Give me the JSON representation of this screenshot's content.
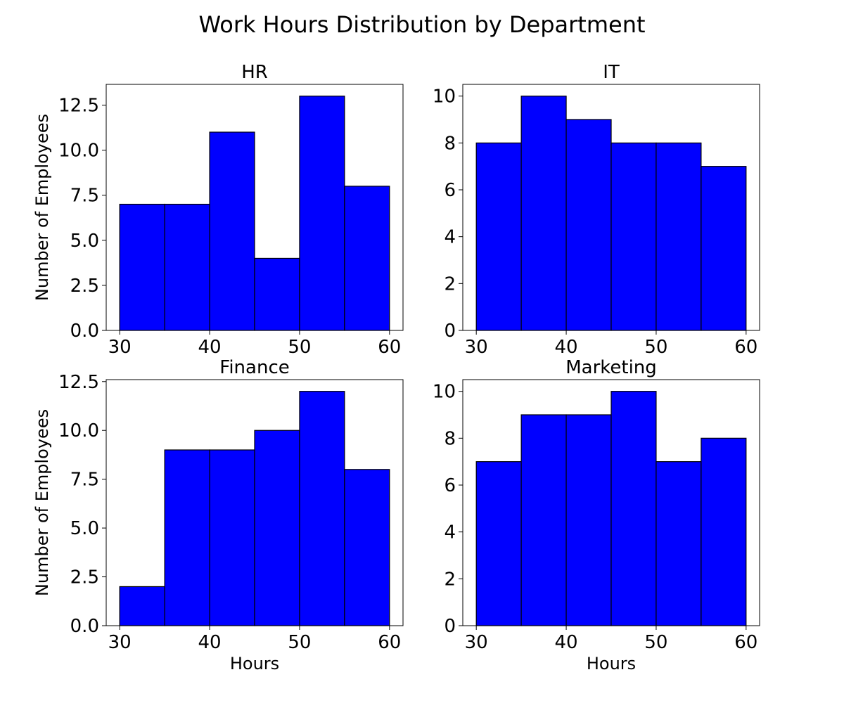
{
  "chart_data": {
    "title": "Work Hours Distribution by Department",
    "type": "bar",
    "colors": {
      "bar_fill": "#0000ff",
      "bar_edge": "#000000",
      "background": "#ffffff"
    },
    "panels": [
      {
        "title": "HR",
        "ylabel": "Number of Employees",
        "xlabel": "",
        "bins": [
          30,
          35,
          40,
          45,
          50,
          55,
          60
        ],
        "values": [
          7,
          7,
          11,
          4,
          13,
          8
        ],
        "xlim": [
          28.5,
          61.5
        ],
        "ylim": [
          0,
          13.65
        ],
        "xticks": [
          30,
          40,
          50,
          60
        ],
        "xtick_labels": [
          "30",
          "40",
          "50",
          "60"
        ],
        "yticks": [
          0,
          2.5,
          5,
          7.5,
          10,
          12.5
        ],
        "ytick_labels": [
          "0.0",
          "2.5",
          "5.0",
          "7.5",
          "10.0",
          "12.5"
        ]
      },
      {
        "title": "IT",
        "ylabel": "",
        "xlabel": "",
        "bins": [
          30,
          35,
          40,
          45,
          50,
          55,
          60
        ],
        "values": [
          8,
          10,
          9,
          8,
          8,
          7
        ],
        "xlim": [
          28.5,
          61.5
        ],
        "ylim": [
          0,
          10.5
        ],
        "xticks": [
          30,
          40,
          50,
          60
        ],
        "xtick_labels": [
          "30",
          "40",
          "50",
          "60"
        ],
        "yticks": [
          0,
          2,
          4,
          6,
          8,
          10
        ],
        "ytick_labels": [
          "0",
          "2",
          "4",
          "6",
          "8",
          "10"
        ]
      },
      {
        "title": "Finance",
        "ylabel": "Number of Employees",
        "xlabel": "Hours",
        "bins": [
          30,
          35,
          40,
          45,
          50,
          55,
          60
        ],
        "values": [
          2,
          9,
          9,
          10,
          12,
          8
        ],
        "xlim": [
          28.5,
          61.5
        ],
        "ylim": [
          0,
          12.6
        ],
        "xticks": [
          30,
          40,
          50,
          60
        ],
        "xtick_labels": [
          "30",
          "40",
          "50",
          "60"
        ],
        "yticks": [
          0,
          2.5,
          5,
          7.5,
          10,
          12.5
        ],
        "ytick_labels": [
          "0.0",
          "2.5",
          "5.0",
          "7.5",
          "10.0",
          "12.5"
        ]
      },
      {
        "title": "Marketing",
        "ylabel": "",
        "xlabel": "Hours",
        "bins": [
          30,
          35,
          40,
          45,
          50,
          55,
          60
        ],
        "values": [
          7,
          9,
          9,
          10,
          7,
          8
        ],
        "xlim": [
          28.5,
          61.5
        ],
        "ylim": [
          0,
          10.5
        ],
        "xticks": [
          30,
          40,
          50,
          60
        ],
        "xtick_labels": [
          "30",
          "40",
          "50",
          "60"
        ],
        "yticks": [
          0,
          2,
          4,
          6,
          8,
          10
        ],
        "ytick_labels": [
          "0",
          "2",
          "4",
          "6",
          "8",
          "10"
        ]
      }
    ]
  }
}
